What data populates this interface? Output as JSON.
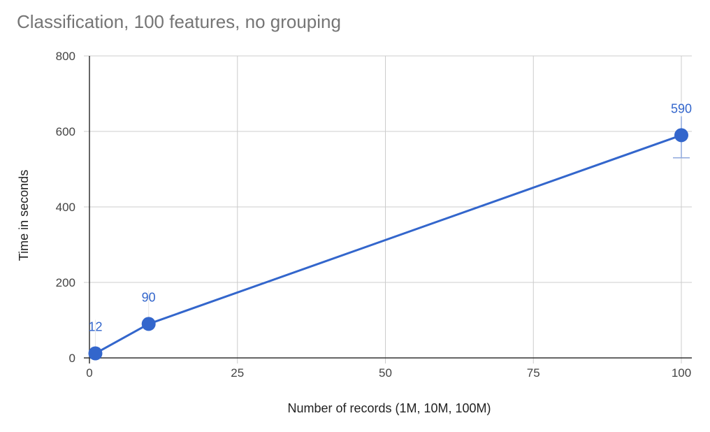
{
  "chart_data": {
    "type": "line",
    "title": "Classification, 100 features, no grouping",
    "xlabel": "Number of records (1M, 10M, 100M)",
    "ylabel": "Time in seconds",
    "xlim": [
      0,
      100
    ],
    "ylim": [
      0,
      800
    ],
    "x_ticks": [
      0,
      25,
      50,
      75,
      100
    ],
    "y_ticks": [
      0,
      200,
      400,
      600,
      800
    ],
    "grid": true,
    "legend": "none",
    "series": [
      {
        "color": "#3366cc",
        "points": [
          {
            "x": 1,
            "y": 12,
            "label": "12"
          },
          {
            "x": 10,
            "y": 90,
            "label": "90"
          },
          {
            "x": 100,
            "y": 590,
            "label": "590",
            "error_low": 530,
            "error_high": 640
          }
        ]
      }
    ]
  }
}
